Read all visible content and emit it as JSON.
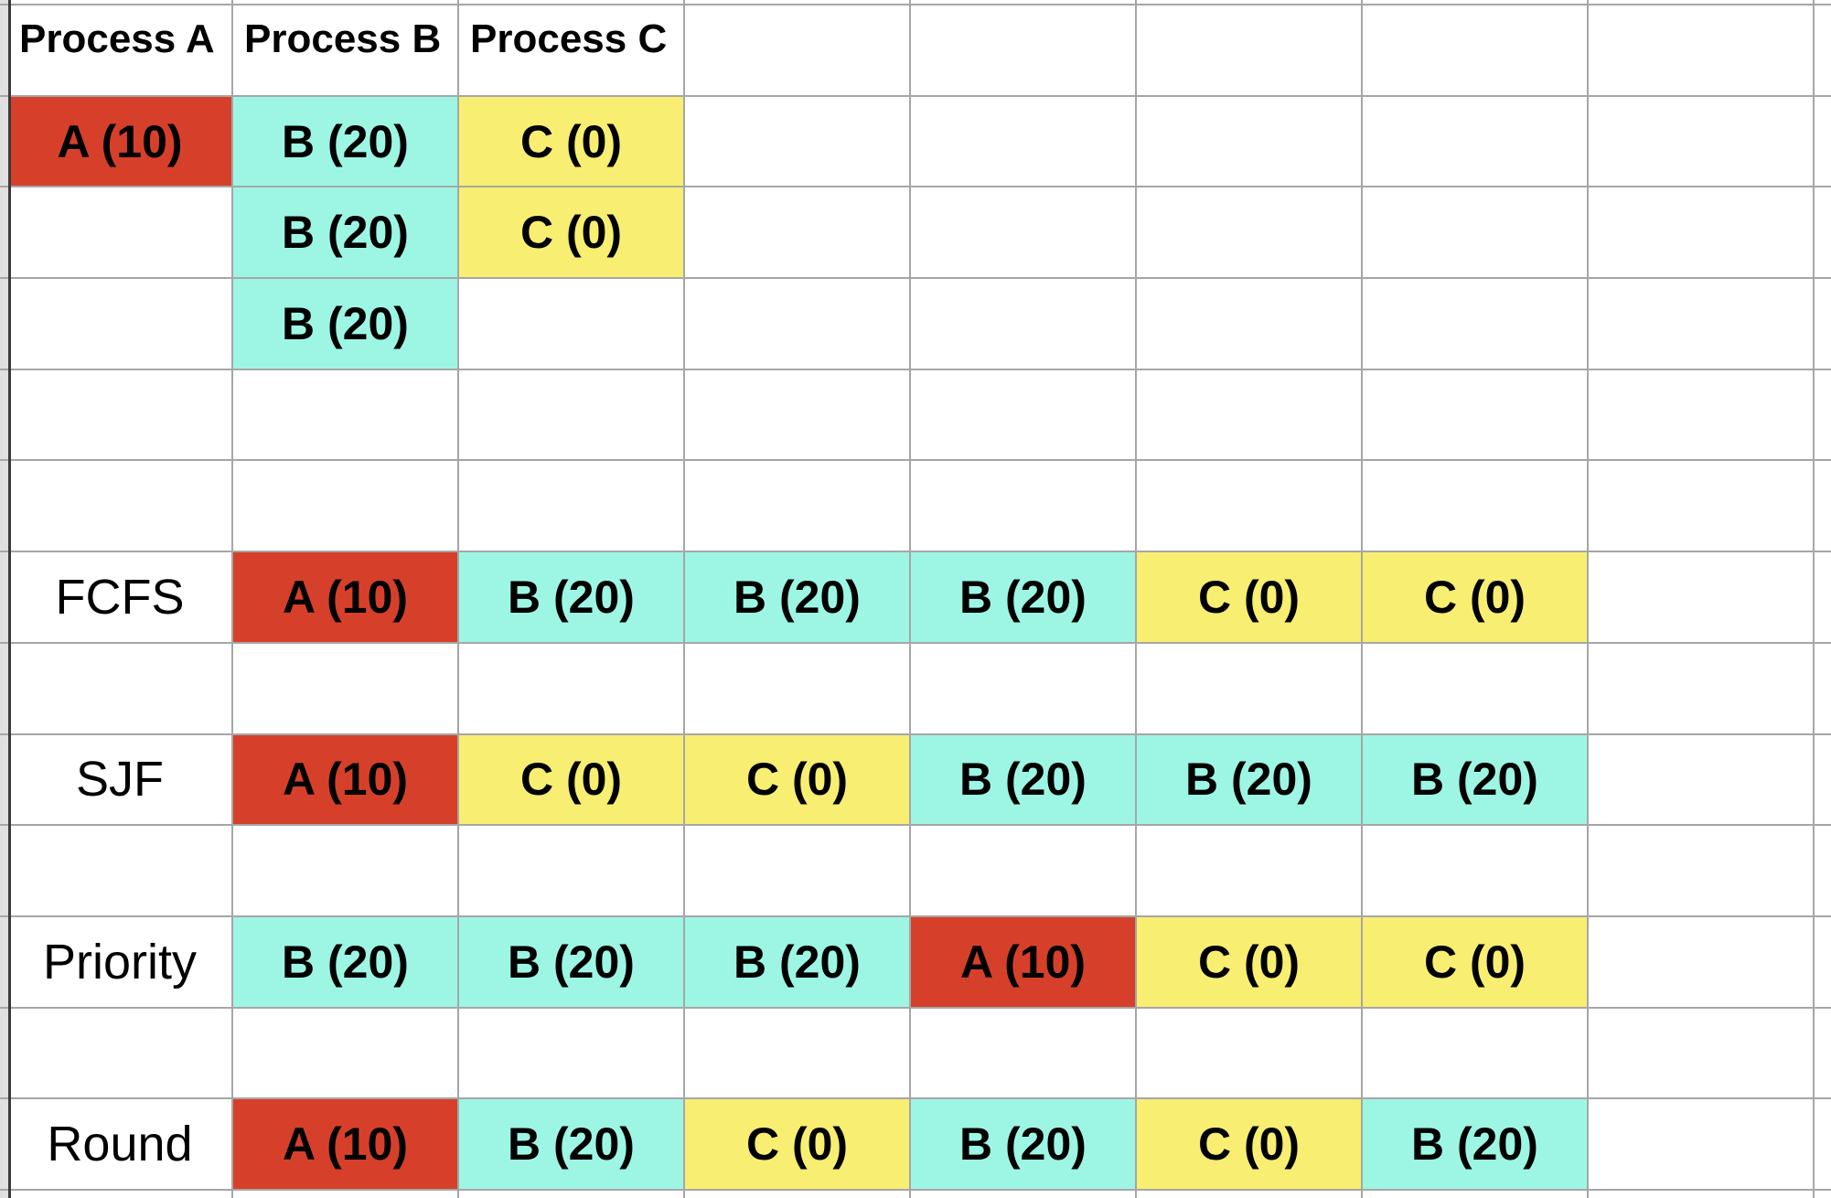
{
  "sheet": {
    "headers": [
      "Process A",
      "Process B",
      "Process C"
    ],
    "palette": {
      "A": "#d6402a",
      "B": "#9df6e4",
      "C": "#f8ee71",
      "gridline": "#a6a6a6",
      "gutter": "#e0e0e0",
      "sheet_border": "#3a3a3a"
    },
    "burst_table": {
      "r1": {
        "a": {
          "process": "A",
          "label": "A (10)"
        },
        "b": {
          "process": "B",
          "label": "B (20)"
        },
        "c": {
          "process": "C",
          "label": "C (0)"
        }
      },
      "r2": {
        "b": {
          "process": "B",
          "label": "B (20)"
        },
        "c": {
          "process": "C",
          "label": "C (0)"
        }
      },
      "r3": {
        "b": {
          "process": "B",
          "label": "B (20)"
        }
      }
    },
    "schedules": [
      {
        "label": "FCFS",
        "slots": [
          {
            "process": "A",
            "label": "A (10)"
          },
          {
            "process": "B",
            "label": "B (20)"
          },
          {
            "process": "B",
            "label": "B (20)"
          },
          {
            "process": "B",
            "label": "B (20)"
          },
          {
            "process": "C",
            "label": "C (0)"
          },
          {
            "process": "C",
            "label": "C (0)"
          }
        ]
      },
      {
        "label": "SJF",
        "slots": [
          {
            "process": "A",
            "label": "A (10)"
          },
          {
            "process": "C",
            "label": "C (0)"
          },
          {
            "process": "C",
            "label": "C (0)"
          },
          {
            "process": "B",
            "label": "B (20)"
          },
          {
            "process": "B",
            "label": "B (20)"
          },
          {
            "process": "B",
            "label": "B (20)"
          }
        ]
      },
      {
        "label": "Priority",
        "slots": [
          {
            "process": "B",
            "label": "B (20)"
          },
          {
            "process": "B",
            "label": "B (20)"
          },
          {
            "process": "B",
            "label": "B (20)"
          },
          {
            "process": "A",
            "label": "A (10)"
          },
          {
            "process": "C",
            "label": "C (0)"
          },
          {
            "process": "C",
            "label": "C (0)"
          }
        ]
      },
      {
        "label": "Round",
        "slots": [
          {
            "process": "A",
            "label": "A (10)"
          },
          {
            "process": "B",
            "label": "B (20)"
          },
          {
            "process": "C",
            "label": "C (0)"
          },
          {
            "process": "B",
            "label": "B (20)"
          },
          {
            "process": "C",
            "label": "C (0)"
          },
          {
            "process": "B",
            "label": "B (20)"
          }
        ]
      }
    ]
  }
}
